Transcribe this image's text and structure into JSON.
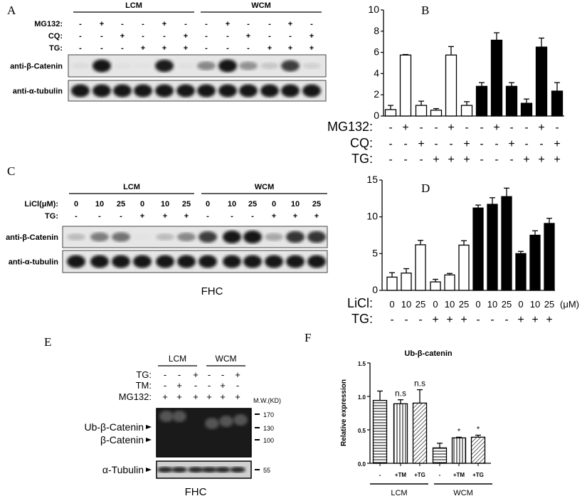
{
  "panel_labels": [
    "A",
    "B",
    "C",
    "D",
    "E",
    "F"
  ],
  "blot_a": {
    "groups": [
      "LCM",
      "WCM"
    ],
    "rows": [
      {
        "label": "MG132:",
        "values": [
          "-",
          "+",
          "-",
          "-",
          "+",
          "-",
          "-",
          "+",
          "-",
          "-",
          "+",
          "-"
        ]
      },
      {
        "label": "CQ:",
        "values": [
          "-",
          "-",
          "+",
          "-",
          "-",
          "+",
          "-",
          "-",
          "+",
          "-",
          "-",
          "+"
        ]
      },
      {
        "label": "TG:",
        "values": [
          "-",
          "-",
          "-",
          "+",
          "+",
          "+",
          "-",
          "-",
          "-",
          "+",
          "+",
          "+"
        ]
      }
    ],
    "bands": [
      {
        "label": "anti-β-Catenin",
        "intensity": [
          0.05,
          1,
          0.03,
          0.02,
          0.95,
          0.03,
          0.45,
          1,
          0.4,
          0.15,
          0.8,
          0.1
        ]
      },
      {
        "label": "anti-α-tubulin",
        "intensity": [
          1,
          1,
          1,
          1,
          1,
          1,
          1,
          1,
          1,
          1,
          1,
          1
        ]
      }
    ]
  },
  "blot_c": {
    "groups": [
      "LCM",
      "WCM"
    ],
    "rows": [
      {
        "label": "LiCl(μM):",
        "values": [
          "0",
          "10",
          "25",
          "0",
          "10",
          "25",
          "0",
          "10",
          "25",
          "0",
          "10",
          "25"
        ]
      },
      {
        "label": "TG:",
        "values": [
          "-",
          "-",
          "-",
          "+",
          "+",
          "+",
          "-",
          "-",
          "-",
          "+",
          "+",
          "+"
        ]
      }
    ],
    "bands": [
      {
        "label": "anti-β-Catenin",
        "intensity": [
          0.2,
          0.5,
          0.55,
          0.02,
          0.2,
          0.45,
          0.8,
          1,
          1,
          0.3,
          0.85,
          0.85
        ]
      },
      {
        "label": "anti-α-tubulin",
        "intensity": [
          1,
          1,
          1,
          1,
          1,
          1,
          1,
          1,
          1,
          1,
          1,
          1
        ]
      }
    ],
    "caption": "FHC"
  },
  "blot_e": {
    "groups": [
      "LCM",
      "WCM"
    ],
    "rows": [
      {
        "label": "TG:",
        "values": [
          "-",
          "-",
          "+",
          "-",
          "-",
          "+"
        ]
      },
      {
        "label": "TM:",
        "values": [
          "-",
          "+",
          "-",
          "-",
          "+",
          "-"
        ]
      },
      {
        "label": "MG132:",
        "values": [
          "+",
          "+",
          "+",
          "+",
          "+",
          "+"
        ]
      }
    ],
    "mw_title": "M.W.(KD)",
    "markers": [
      "170",
      "130",
      "100",
      "55"
    ],
    "band_labels": [
      "Ub-β-Catenin",
      "β-Catenin",
      "α-Tubulin"
    ],
    "caption": "FHC"
  },
  "chart_data": [
    {
      "panel": "B",
      "type": "bar",
      "ylim": [
        0,
        10
      ],
      "yticks": [
        0,
        2,
        4,
        6,
        8,
        10
      ],
      "values": [
        0.6,
        5.75,
        1.0,
        0.55,
        5.75,
        1.0,
        2.8,
        7.15,
        2.8,
        1.2,
        6.5,
        2.35
      ],
      "errors": [
        0.4,
        0.05,
        0.4,
        0.15,
        0.8,
        0.35,
        0.35,
        0.7,
        0.35,
        0.4,
        0.85,
        0.8
      ],
      "fills": [
        "white",
        "white",
        "white",
        "white",
        "white",
        "white",
        "black",
        "black",
        "black",
        "black",
        "black",
        "black"
      ],
      "condition_rows": [
        {
          "label": "MG132:",
          "values": [
            "-",
            "+",
            "-",
            "-",
            "+",
            "-",
            "-",
            "+",
            "-",
            "-",
            "+",
            "-"
          ]
        },
        {
          "label": "CQ:",
          "values": [
            "-",
            "-",
            "+",
            "-",
            "-",
            "+",
            "-",
            "-",
            "+",
            "-",
            "-",
            "+"
          ]
        },
        {
          "label": "TG:",
          "values": [
            "-",
            "-",
            "-",
            "+",
            "+",
            "+",
            "-",
            "-",
            "-",
            "+",
            "+",
            "+"
          ]
        }
      ]
    },
    {
      "panel": "D",
      "type": "bar",
      "ylim": [
        0,
        15
      ],
      "yticks": [
        0,
        5,
        10,
        15
      ],
      "values": [
        1.8,
        2.35,
        6.2,
        1.15,
        2.1,
        6.15,
        11.2,
        11.7,
        12.75,
        5.0,
        7.5,
        9.1
      ],
      "errors": [
        0.6,
        0.6,
        0.6,
        0.35,
        0.2,
        0.6,
        0.4,
        0.9,
        1.15,
        0.3,
        0.6,
        0.7
      ],
      "fills": [
        "white",
        "white",
        "white",
        "white",
        "white",
        "white",
        "black",
        "black",
        "black",
        "black",
        "black",
        "black"
      ],
      "condition_rows": [
        {
          "label": "LiCl:",
          "values": [
            "0",
            "10",
            "25",
            "0",
            "10",
            "25",
            "0",
            "10",
            "25",
            "0",
            "10",
            "25"
          ],
          "unit": "(μM)"
        },
        {
          "label": "TG:",
          "values": [
            "-",
            "-",
            "-",
            "+",
            "+",
            "+",
            "-",
            "-",
            "-",
            "+",
            "+",
            "+"
          ]
        }
      ]
    },
    {
      "panel": "F",
      "type": "bar",
      "title": "Ub-β-catenin",
      "ylabel": "Relative expression",
      "ylim": [
        0,
        1.5
      ],
      "yticks": [
        "0.0",
        "0.5",
        "1.0",
        "1.5"
      ],
      "categories": [
        "-",
        "+TM",
        "+TG",
        "-",
        "+TM",
        "+TG"
      ],
      "groups": [
        "LCM",
        "WCM"
      ],
      "values": [
        0.94,
        0.89,
        0.9,
        0.23,
        0.38,
        0.39
      ],
      "errors": [
        0.14,
        0.06,
        0.2,
        0.07,
        0.01,
        0.03
      ],
      "patterns": [
        "horizontal",
        "vertical",
        "diagonal",
        "horizontal",
        "vertical",
        "diagonal"
      ],
      "annotations": [
        "",
        "n.s",
        "n.s",
        "",
        "*",
        "*"
      ]
    }
  ]
}
